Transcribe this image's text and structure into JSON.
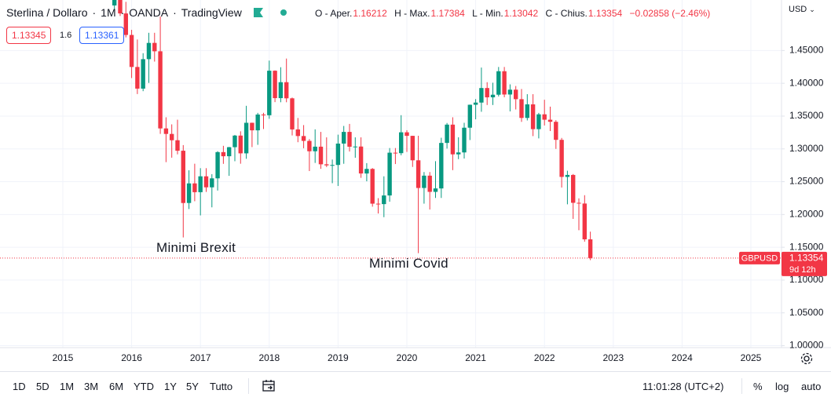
{
  "header": {
    "symbol": [
      "Sterlina / Dollaro",
      "1M",
      "OANDA",
      "TradingView"
    ],
    "ohlc": [
      {
        "label": "O - Aper.",
        "value": 1.16212
      },
      {
        "label": "H - Max.",
        "value": 1.17384
      },
      {
        "label": "L - Min.",
        "value": 1.13042
      },
      {
        "label": "C - Chius.",
        "value": 1.13354
      }
    ],
    "change": "−0.02858 (−2.46%)"
  },
  "order_boxes": {
    "sell": "1.13345",
    "spread": "1.6",
    "buy": "1.13361"
  },
  "currency": "USD",
  "chart_data": {
    "type": "candlestick",
    "up_color": "#089981",
    "down_color": "#f23645",
    "grid": true,
    "x": [
      "2015-10",
      "2015-11",
      "2015-12",
      "2016-01",
      "2016-02",
      "2016-03",
      "2016-04",
      "2016-05",
      "2016-06",
      "2016-07",
      "2016-08",
      "2016-09",
      "2016-10",
      "2016-11",
      "2016-12",
      "2017-01",
      "2017-02",
      "2017-03",
      "2017-04",
      "2017-05",
      "2017-06",
      "2017-07",
      "2017-08",
      "2017-09",
      "2017-10",
      "2017-11",
      "2017-12",
      "2018-01",
      "2018-02",
      "2018-03",
      "2018-04",
      "2018-05",
      "2018-06",
      "2018-07",
      "2018-08",
      "2018-09",
      "2018-10",
      "2018-11",
      "2018-12",
      "2019-01",
      "2019-02",
      "2019-03",
      "2019-04",
      "2019-05",
      "2019-06",
      "2019-07",
      "2019-08",
      "2019-09",
      "2019-10",
      "2019-11",
      "2019-12",
      "2020-01",
      "2020-02",
      "2020-03",
      "2020-04",
      "2020-05",
      "2020-06",
      "2020-07",
      "2020-08",
      "2020-09",
      "2020-10",
      "2020-11",
      "2020-12",
      "2021-01",
      "2021-02",
      "2021-03",
      "2021-04",
      "2021-05",
      "2021-06",
      "2021-07",
      "2021-08",
      "2021-09",
      "2021-10",
      "2021-11",
      "2021-12",
      "2022-01",
      "2022-02",
      "2022-03",
      "2022-04",
      "2022-05",
      "2022-06",
      "2022-07",
      "2022-08",
      "2022-09"
    ],
    "open": [
      1.5187,
      1.5428,
      1.5065,
      1.4737,
      1.4249,
      1.3919,
      1.4368,
      1.4616,
      1.4488,
      1.3312,
      1.3228,
      1.3132,
      1.2972,
      1.2175,
      1.2474,
      1.234,
      1.2582,
      1.2414,
      1.2551,
      1.2951,
      1.2888,
      1.3026,
      1.3203,
      1.2932,
      1.3398,
      1.3283,
      1.3524,
      1.3513,
      1.4192,
      1.3774,
      1.4017,
      1.3771,
      1.3297,
      1.3196,
      1.3122,
      1.2964,
      1.3034,
      1.2765,
      1.2749,
      1.2755,
      1.3081,
      1.3259,
      1.3033,
      1.3036,
      1.2625,
      1.2695,
      1.2165,
      1.2158,
      1.229,
      1.2942,
      1.2935,
      1.3253,
      1.3199,
      1.2826,
      1.2404,
      1.2592,
      1.2345,
      1.2397,
      1.3091,
      1.337,
      1.2917,
      1.2946,
      1.3323,
      1.3673,
      1.3706,
      1.3928,
      1.3786,
      1.3826,
      1.4184,
      1.3829,
      1.3903,
      1.3758,
      1.3472,
      1.3679,
      1.3301,
      1.3527,
      1.3445,
      1.3413,
      1.3138,
      1.2573,
      1.2603,
      1.2178,
      1.2167,
      1.16212
    ],
    "high": [
      1.5508,
      1.5439,
      1.5242,
      1.4815,
      1.4668,
      1.4459,
      1.477,
      1.477,
      1.5018,
      1.3482,
      1.3374,
      1.3445,
      1.3058,
      1.2674,
      1.2774,
      1.2706,
      1.2706,
      1.2615,
      1.2965,
      1.3047,
      1.303,
      1.3213,
      1.3268,
      1.3657,
      1.34,
      1.3549,
      1.355,
      1.4346,
      1.4197,
      1.4245,
      1.4377,
      1.3783,
      1.3472,
      1.3363,
      1.315,
      1.3298,
      1.3259,
      1.3176,
      1.2838,
      1.3217,
      1.335,
      1.3381,
      1.3176,
      1.3176,
      1.2783,
      1.2708,
      1.2249,
      1.2582,
      1.3013,
      1.3013,
      1.3514,
      1.3285,
      1.32,
      1.32,
      1.2647,
      1.2647,
      1.2813,
      1.317,
      1.3395,
      1.3482,
      1.3177,
      1.3398,
      1.3675,
      1.3759,
      1.424,
      1.4017,
      1.4009,
      1.4249,
      1.4249,
      1.3984,
      1.3959,
      1.3913,
      1.3834,
      1.3834,
      1.3549,
      1.3749,
      1.3644,
      1.3438,
      1.3167,
      1.2667,
      1.2617,
      1.2246,
      1.2294,
      1.17384
    ],
    "low": [
      1.5107,
      1.5026,
      1.47,
      1.408,
      1.3836,
      1.388,
      1.4006,
      1.4331,
      1.3229,
      1.2798,
      1.2866,
      1.2917,
      1.165,
      1.2083,
      1.2202,
      1.1986,
      1.2344,
      1.2109,
      1.2365,
      1.2772,
      1.2589,
      1.2812,
      1.2774,
      1.2849,
      1.3027,
      1.3062,
      1.3303,
      1.3459,
      1.3713,
      1.3711,
      1.3711,
      1.3205,
      1.3102,
      1.301,
      1.2662,
      1.2786,
      1.2696,
      1.2723,
      1.2477,
      1.2435,
      1.2773,
      1.296,
      1.2865,
      1.2559,
      1.2506,
      1.2119,
      1.2015,
      1.1959,
      1.2195,
      1.2769,
      1.2903,
      1.2954,
      1.2725,
      1.141,
      1.2165,
      1.2076,
      1.2252,
      1.2252,
      1.3005,
      1.2676,
      1.2844,
      1.2853,
      1.3135,
      1.3451,
      1.3566,
      1.3669,
      1.3669,
      1.3799,
      1.3787,
      1.3572,
      1.3601,
      1.3412,
      1.3434,
      1.3195,
      1.316,
      1.3357,
      1.3272,
      1.3,
      1.2411,
      1.2155,
      1.1933,
      1.176,
      1.1586,
      1.13042
    ],
    "close": [
      1.5428,
      1.5065,
      1.4737,
      1.4249,
      1.3919,
      1.4368,
      1.4616,
      1.4488,
      1.3312,
      1.3228,
      1.3132,
      1.2972,
      1.2175,
      1.2474,
      1.234,
      1.2582,
      1.2414,
      1.2551,
      1.2951,
      1.2888,
      1.3026,
      1.3203,
      1.2932,
      1.3398,
      1.3283,
      1.3524,
      1.3513,
      1.4192,
      1.3774,
      1.4017,
      1.3771,
      1.3297,
      1.3196,
      1.3122,
      1.2964,
      1.3034,
      1.2765,
      1.2749,
      1.2755,
      1.3081,
      1.3259,
      1.3033,
      1.3036,
      1.2625,
      1.2695,
      1.2165,
      1.2158,
      1.229,
      1.2942,
      1.2935,
      1.3253,
      1.3199,
      1.2826,
      1.2404,
      1.2592,
      1.2345,
      1.2397,
      1.3091,
      1.337,
      1.2917,
      1.2946,
      1.3323,
      1.3673,
      1.3706,
      1.3928,
      1.3786,
      1.3826,
      1.4184,
      1.3829,
      1.3903,
      1.3758,
      1.3472,
      1.3679,
      1.3301,
      1.3527,
      1.3445,
      1.3413,
      1.3138,
      1.2573,
      1.2603,
      1.2178,
      1.2167,
      1.16212,
      1.13354
    ],
    "xlim": [
      2014.087,
      2025.445
    ],
    "xticks": [
      2015,
      2016,
      2017,
      2018,
      2019,
      2020,
      2021,
      2022,
      2023,
      2024,
      2025
    ],
    "ylim": [
      0.997,
      1.527
    ],
    "yticks": [
      {
        "value": 1.0,
        "label": "1.00000"
      },
      {
        "value": 1.05,
        "label": "1.05000"
      },
      {
        "value": 1.1,
        "label": "1.10000"
      },
      {
        "value": 1.15,
        "label": "1.15000"
      },
      {
        "value": 1.2,
        "label": "1.20000"
      },
      {
        "value": 1.25,
        "label": "1.25000"
      },
      {
        "value": 1.3,
        "label": "1.30000"
      },
      {
        "value": 1.35,
        "label": "1.35000"
      },
      {
        "value": 1.4,
        "label": "1.40000"
      },
      {
        "value": 1.45,
        "label": "1.45000"
      }
    ],
    "annotations": [
      "Minimi Brexit",
      "Minimi Covid"
    ],
    "last_price": {
      "symbol": "GBPUSD",
      "value": 1.13354,
      "countdown": "9d 12h"
    }
  },
  "toolbar": {
    "ranges": [
      "1D",
      "5D",
      "1M",
      "3M",
      "6M",
      "YTD",
      "1Y",
      "5Y",
      "Tutto"
    ],
    "time": "11:01:28 (UTC+2)",
    "options": [
      "%",
      "log",
      "auto"
    ]
  }
}
